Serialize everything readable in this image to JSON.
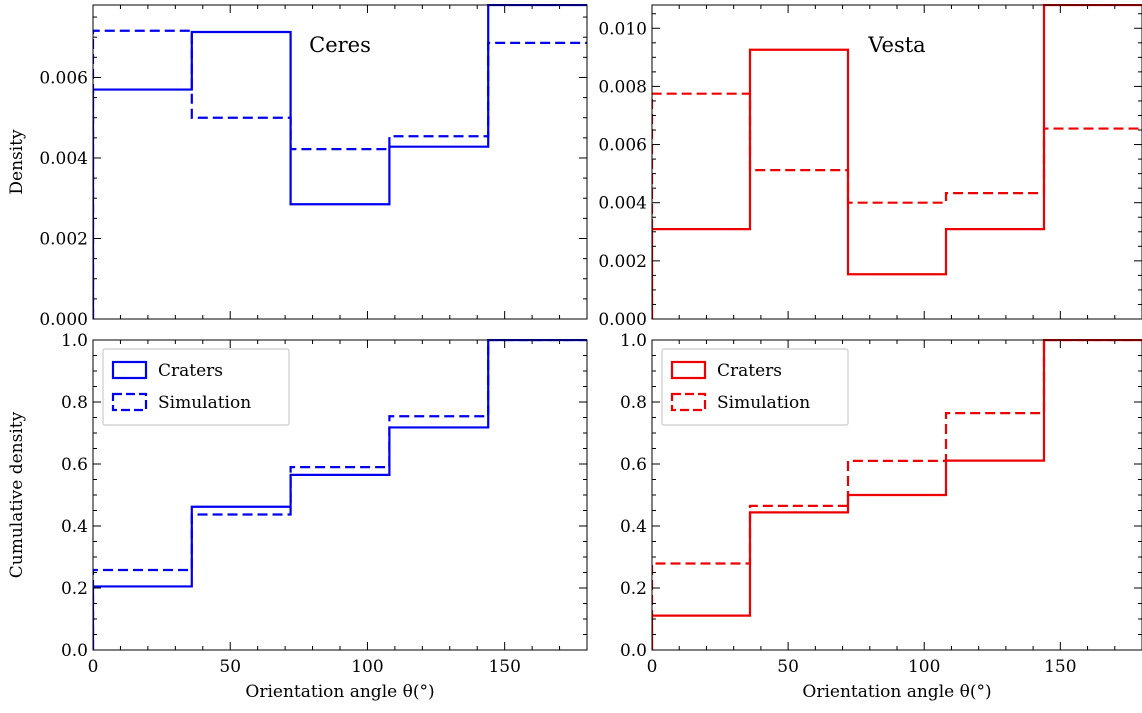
{
  "chart_data": [
    {
      "type": "step",
      "panel": "top-left",
      "title": "Ceres",
      "xlabel": "",
      "ylabel": "Density",
      "xlim": [
        0,
        180
      ],
      "ylim": [
        0,
        0.0078
      ],
      "xticks": [
        0,
        50,
        100,
        150
      ],
      "xtick_labels": [
        "",
        "",
        "",
        ""
      ],
      "yticks": [
        0,
        0.002,
        0.004,
        0.006
      ],
      "ytick_labels": [
        "0.000",
        "0.002",
        "0.004",
        "0.006"
      ],
      "bin_edges": [
        0,
        36,
        72,
        108,
        144,
        180
      ],
      "color": "#0000ee",
      "series": [
        {
          "name": "Craters",
          "style": "solid",
          "values": [
            0.0057,
            0.00713,
            0.00285,
            0.00428,
            0.0078
          ]
        },
        {
          "name": "Simulation",
          "style": "dashed",
          "values": [
            0.00716,
            0.005,
            0.00422,
            0.00454,
            0.00686
          ]
        }
      ]
    },
    {
      "type": "step",
      "panel": "top-right",
      "title": "Vesta",
      "xlabel": "",
      "ylabel": "",
      "xlim": [
        0,
        180
      ],
      "ylim": [
        0,
        0.0108
      ],
      "xticks": [
        0,
        50,
        100,
        150
      ],
      "xtick_labels": [
        "",
        "",
        "",
        ""
      ],
      "yticks": [
        0,
        0.002,
        0.004,
        0.006,
        0.008,
        0.01
      ],
      "ytick_labels": [
        "0.000",
        "0.002",
        "0.004",
        "0.006",
        "0.008",
        "0.010"
      ],
      "bin_edges": [
        0,
        36,
        72,
        108,
        144,
        180
      ],
      "color": "#ee0000",
      "series": [
        {
          "name": "Craters",
          "style": "solid",
          "values": [
            0.00309,
            0.00926,
            0.00154,
            0.00309,
            0.0108
          ]
        },
        {
          "name": "Simulation",
          "style": "dashed",
          "values": [
            0.00775,
            0.00512,
            0.004,
            0.00433,
            0.00655
          ]
        }
      ]
    },
    {
      "type": "step",
      "panel": "bottom-left",
      "title": "",
      "xlabel": "Orientation angle θ(°)",
      "ylabel": "Cumulative density",
      "xlim": [
        0,
        180
      ],
      "ylim": [
        0,
        1.0
      ],
      "xticks": [
        0,
        50,
        100,
        150
      ],
      "xtick_labels": [
        "0",
        "50",
        "100",
        "150"
      ],
      "yticks": [
        0,
        0.2,
        0.4,
        0.6,
        0.8,
        1.0
      ],
      "ytick_labels": [
        "0.0",
        "0.2",
        "0.4",
        "0.6",
        "0.8",
        "1.0"
      ],
      "bin_edges": [
        0,
        36,
        72,
        108,
        144,
        180
      ],
      "color": "#0000ee",
      "legend": "top-left",
      "series": [
        {
          "name": "Craters",
          "style": "solid",
          "values": [
            0.205,
            0.462,
            0.565,
            0.718,
            1.0
          ]
        },
        {
          "name": "Simulation",
          "style": "dashed",
          "values": [
            0.258,
            0.437,
            0.59,
            0.754,
            1.0
          ]
        }
      ]
    },
    {
      "type": "step",
      "panel": "bottom-right",
      "title": "",
      "xlabel": "Orientation angle θ(°)",
      "ylabel": "",
      "xlim": [
        0,
        180
      ],
      "ylim": [
        0,
        1.0
      ],
      "xticks": [
        0,
        50,
        100,
        150
      ],
      "xtick_labels": [
        "0",
        "50",
        "100",
        "150"
      ],
      "yticks": [
        0,
        0.2,
        0.4,
        0.6,
        0.8,
        1.0
      ],
      "ytick_labels": [
        "0.0",
        "0.2",
        "0.4",
        "0.6",
        "0.8",
        "1.0"
      ],
      "bin_edges": [
        0,
        36,
        72,
        108,
        144,
        180
      ],
      "color": "#ee0000",
      "legend": "top-left",
      "series": [
        {
          "name": "Craters",
          "style": "solid",
          "values": [
            0.111,
            0.444,
            0.5,
            0.611,
            1.0
          ]
        },
        {
          "name": "Simulation",
          "style": "dashed",
          "values": [
            0.279,
            0.465,
            0.61,
            0.764,
            1.0
          ]
        }
      ]
    }
  ]
}
